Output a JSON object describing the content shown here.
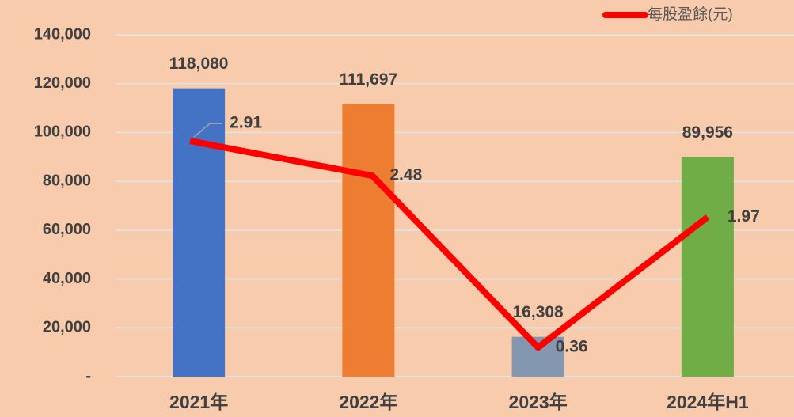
{
  "chart_data": {
    "type": "bar",
    "categories": [
      "2021年",
      "2022年",
      "2023年",
      "2024年H1"
    ],
    "values": [
      118080,
      111697,
      16308,
      89956
    ],
    "value_labels": [
      "118,080",
      "111,697",
      "16,308",
      "89,956"
    ],
    "colors": [
      "#4472c4",
      "#ed7d31",
      "#8497b0",
      "#70ad47"
    ],
    "ylim": [
      0,
      140000
    ],
    "yticks": [
      {
        "value": 0,
        "label": "-"
      },
      {
        "value": 20000,
        "label": "20,000"
      },
      {
        "value": 40000,
        "label": "40,000"
      },
      {
        "value": 60000,
        "label": "60,000"
      },
      {
        "value": 80000,
        "label": "80,000"
      },
      {
        "value": 100000,
        "label": "100,000"
      },
      {
        "value": 120000,
        "label": "120,000"
      },
      {
        "value": 140000,
        "label": "140,000"
      }
    ],
    "grid": true,
    "y2lim": [
      0,
      4.22
    ],
    "series": [
      {
        "name": "每股盈餘(元)",
        "color": "#ff0000",
        "axis": "y2",
        "type": "line",
        "values": [
          2.91,
          2.48,
          0.36,
          1.97
        ]
      }
    ],
    "legend": "top-right"
  }
}
